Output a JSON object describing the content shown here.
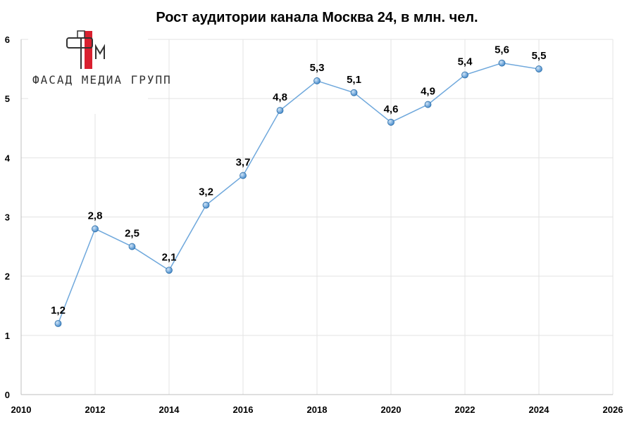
{
  "chart_data": {
    "type": "line",
    "title": "Рост аудитории канала Москва 24, в млн. чел.",
    "xlim": [
      2010,
      2026
    ],
    "ylim": [
      0,
      6
    ],
    "x_ticks": [
      "2010",
      "2012",
      "2014",
      "2016",
      "2018",
      "2020",
      "2022",
      "2024",
      "2026"
    ],
    "y_ticks": [
      "0",
      "1",
      "2",
      "3",
      "4",
      "5",
      "6"
    ],
    "grid": true,
    "series": [
      {
        "x": [
          2011,
          2012,
          2013,
          2014,
          2015,
          2016,
          2017,
          2018,
          2019,
          2020,
          2021,
          2022,
          2023,
          2024
        ],
        "values": [
          1.2,
          2.8,
          2.5,
          2.1,
          3.2,
          3.7,
          4.8,
          5.3,
          5.1,
          4.6,
          4.9,
          5.4,
          5.6,
          5.5
        ],
        "labels": [
          "1,2",
          "2,8",
          "2,5",
          "2,1",
          "3,2",
          "3,7",
          "4,8",
          "5,3",
          "5,1",
          "4,6",
          "4,9",
          "5,4",
          "5,6",
          "5,5"
        ],
        "color": "#6fa8dc"
      }
    ]
  },
  "logo": {
    "text": "ФАСАД МЕДИА ГРУПП",
    "accent_color": "#d9202f"
  }
}
